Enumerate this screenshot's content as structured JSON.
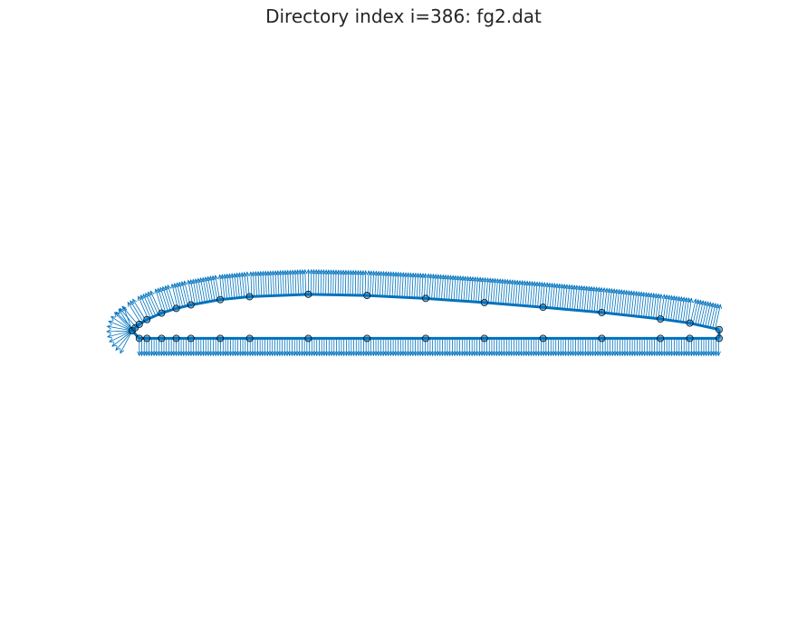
{
  "title": "Directory index i=386: fg2.dat",
  "colors": {
    "curve": "#0072BD",
    "marker_edge": "#000000"
  },
  "chart_data": {
    "type": "diagram",
    "upper_surface": [
      [
        0.0,
        0.0
      ],
      [
        0.005,
        0.005
      ],
      [
        0.012,
        0.011
      ],
      [
        0.025,
        0.019
      ],
      [
        0.05,
        0.03
      ],
      [
        0.075,
        0.038
      ],
      [
        0.1,
        0.044
      ],
      [
        0.15,
        0.053
      ],
      [
        0.2,
        0.058
      ],
      [
        0.3,
        0.062
      ],
      [
        0.4,
        0.06
      ],
      [
        0.5,
        0.055
      ],
      [
        0.6,
        0.048
      ],
      [
        0.7,
        0.04
      ],
      [
        0.8,
        0.031
      ],
      [
        0.9,
        0.02
      ],
      [
        0.95,
        0.013
      ],
      [
        1.0,
        0.002
      ]
    ],
    "lower_surface": [
      [
        0.0,
        0.0
      ],
      [
        0.012,
        -0.013
      ],
      [
        0.025,
        -0.013
      ],
      [
        0.05,
        -0.013
      ],
      [
        0.075,
        -0.013
      ],
      [
        0.1,
        -0.013
      ],
      [
        0.15,
        -0.013
      ],
      [
        0.2,
        -0.013
      ],
      [
        0.3,
        -0.013
      ],
      [
        0.4,
        -0.013
      ],
      [
        0.5,
        -0.013
      ],
      [
        0.6,
        -0.013
      ],
      [
        0.7,
        -0.013
      ],
      [
        0.8,
        -0.013
      ],
      [
        0.9,
        -0.013
      ],
      [
        0.95,
        -0.013
      ],
      [
        1.0,
        -0.013
      ]
    ],
    "arrow_spacing": 0.0042,
    "arrow_length": 0.042
  }
}
